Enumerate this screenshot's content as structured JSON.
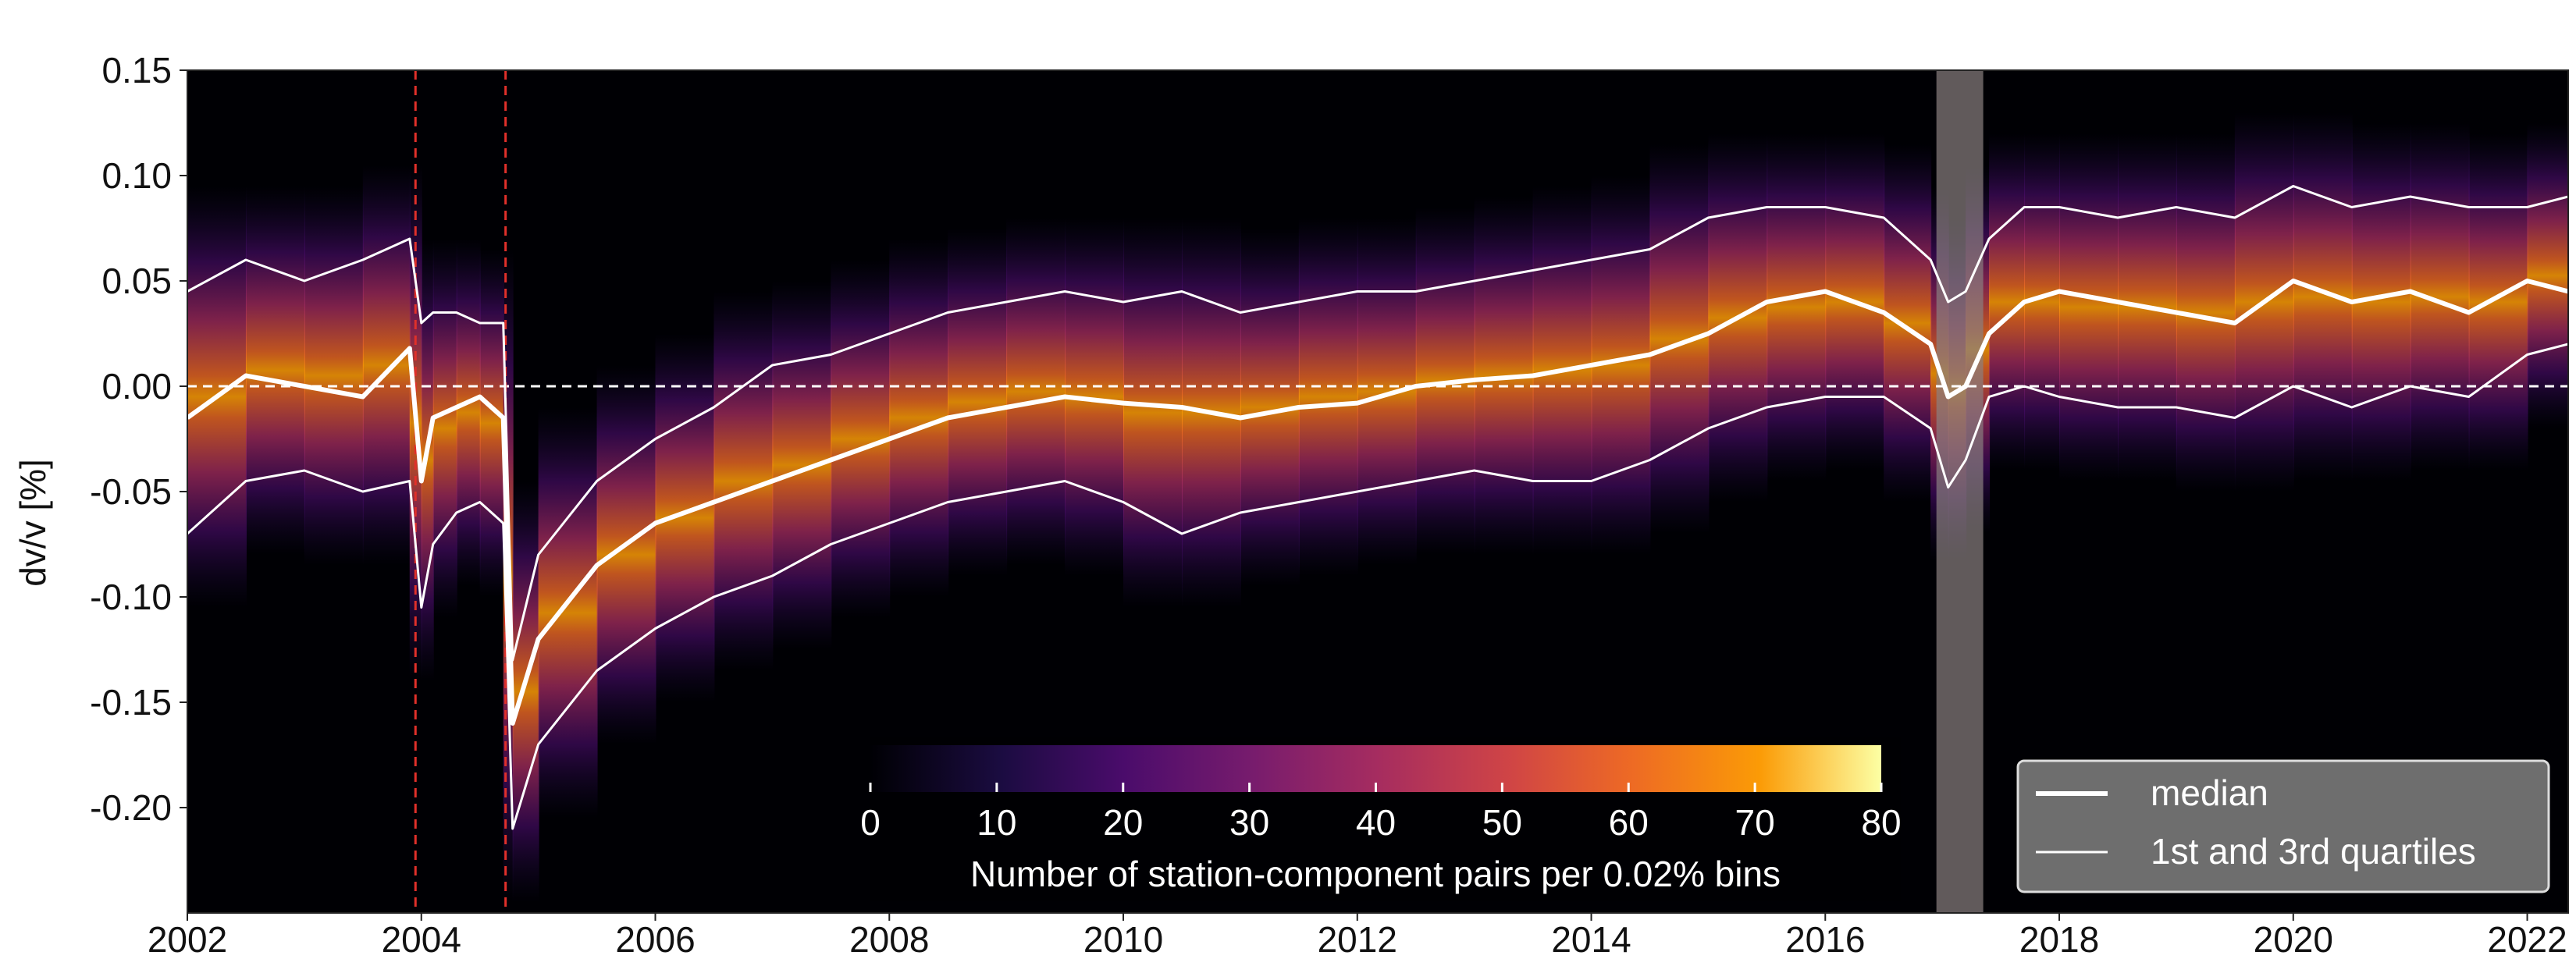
{
  "chart_data": {
    "type": "heatmap",
    "title": "",
    "xlabel": "",
    "ylabel": "dv/v [%]",
    "xlim": [
      2002.0,
      2022.35
    ],
    "ylim": [
      -0.25,
      0.15
    ],
    "x_ticks": [
      "2002",
      "2004",
      "2006",
      "2008",
      "2010",
      "2012",
      "2014",
      "2016",
      "2018",
      "2020",
      "2022"
    ],
    "x_tick_values": [
      2002,
      2004,
      2006,
      2008,
      2010,
      2012,
      2014,
      2016,
      2018,
      2020,
      2022
    ],
    "y_ticks": [
      "0.15",
      "0.10",
      "0.05",
      "0.00",
      "-0.05",
      "-0.10",
      "-0.15",
      "-0.20"
    ],
    "y_tick_values": [
      0.15,
      0.1,
      0.05,
      0.0,
      -0.05,
      -0.1,
      -0.15,
      -0.2
    ],
    "grid": false,
    "reference_line": {
      "y": 0.0,
      "style": "dashed",
      "color": "#ffffff"
    },
    "event_lines": [
      {
        "x": 2003.95,
        "color": "#e0302a",
        "style": "dashed"
      },
      {
        "x": 2004.72,
        "color": "#e0302a",
        "style": "dashed"
      }
    ],
    "shaded_interval": {
      "x0": 2016.95,
      "x1": 2017.35,
      "color": "#8a8080"
    },
    "colorbar": {
      "label": "Number of station-component pairs per 0.02% bins",
      "range": [
        0,
        80
      ],
      "ticks": [
        "0",
        "10",
        "20",
        "30",
        "40",
        "50",
        "60",
        "70",
        "80"
      ],
      "tick_values": [
        0,
        10,
        20,
        30,
        40,
        50,
        60,
        70,
        80
      ],
      "colormap": "inferno",
      "placement": "bottom-center"
    },
    "legend": {
      "placement": "bottom-right",
      "entries": [
        {
          "label": "median",
          "style": "thick white line"
        },
        {
          "label": "1st and 3rd quartiles",
          "style": "thin white line"
        }
      ]
    },
    "series": [
      {
        "name": "median",
        "x": [
          2002.0,
          2002.5,
          2003.0,
          2003.5,
          2003.9,
          2004.0,
          2004.1,
          2004.3,
          2004.5,
          2004.7,
          2004.78,
          2005.0,
          2005.5,
          2006.0,
          2006.5,
          2007.0,
          2007.5,
          2008.0,
          2008.5,
          2009.0,
          2009.5,
          2010.0,
          2010.5,
          2011.0,
          2011.5,
          2012.0,
          2012.5,
          2013.0,
          2013.5,
          2014.0,
          2014.5,
          2015.0,
          2015.5,
          2016.0,
          2016.5,
          2016.9,
          2017.05,
          2017.2,
          2017.4,
          2017.7,
          2018.0,
          2018.5,
          2019.0,
          2019.5,
          2020.0,
          2020.5,
          2021.0,
          2021.5,
          2022.0,
          2022.35
        ],
        "y": [
          -0.015,
          0.005,
          0.0,
          -0.005,
          0.018,
          -0.045,
          -0.015,
          -0.01,
          -0.005,
          -0.015,
          -0.16,
          -0.12,
          -0.085,
          -0.065,
          -0.055,
          -0.045,
          -0.035,
          -0.025,
          -0.015,
          -0.01,
          -0.005,
          -0.008,
          -0.01,
          -0.015,
          -0.01,
          -0.008,
          0.0,
          0.003,
          0.005,
          0.01,
          0.015,
          0.025,
          0.04,
          0.045,
          0.035,
          0.02,
          -0.005,
          0.0,
          0.025,
          0.04,
          0.045,
          0.04,
          0.035,
          0.03,
          0.05,
          0.04,
          0.045,
          0.035,
          0.05,
          0.045
        ]
      },
      {
        "name": "1st quartile",
        "x": [
          2002.0,
          2002.5,
          2003.0,
          2003.5,
          2003.9,
          2004.0,
          2004.1,
          2004.3,
          2004.5,
          2004.7,
          2004.78,
          2005.0,
          2005.5,
          2006.0,
          2006.5,
          2007.0,
          2007.5,
          2008.0,
          2008.5,
          2009.0,
          2009.5,
          2010.0,
          2010.5,
          2011.0,
          2011.5,
          2012.0,
          2012.5,
          2013.0,
          2013.5,
          2014.0,
          2014.5,
          2015.0,
          2015.5,
          2016.0,
          2016.5,
          2016.9,
          2017.05,
          2017.2,
          2017.4,
          2017.7,
          2018.0,
          2018.5,
          2019.0,
          2019.5,
          2020.0,
          2020.5,
          2021.0,
          2021.5,
          2022.0,
          2022.35
        ],
        "y": [
          -0.07,
          -0.045,
          -0.04,
          -0.05,
          -0.045,
          -0.105,
          -0.075,
          -0.06,
          -0.055,
          -0.065,
          -0.21,
          -0.17,
          -0.135,
          -0.115,
          -0.1,
          -0.09,
          -0.075,
          -0.065,
          -0.055,
          -0.05,
          -0.045,
          -0.055,
          -0.07,
          -0.06,
          -0.055,
          -0.05,
          -0.045,
          -0.04,
          -0.045,
          -0.045,
          -0.035,
          -0.02,
          -0.01,
          -0.005,
          -0.005,
          -0.02,
          -0.048,
          -0.035,
          -0.005,
          0.0,
          -0.005,
          -0.01,
          -0.01,
          -0.015,
          0.0,
          -0.01,
          0.0,
          -0.005,
          0.015,
          0.02
        ]
      },
      {
        "name": "3rd quartile",
        "x": [
          2002.0,
          2002.5,
          2003.0,
          2003.5,
          2003.9,
          2004.0,
          2004.1,
          2004.3,
          2004.5,
          2004.7,
          2004.78,
          2005.0,
          2005.5,
          2006.0,
          2006.5,
          2007.0,
          2007.5,
          2008.0,
          2008.5,
          2009.0,
          2009.5,
          2010.0,
          2010.5,
          2011.0,
          2011.5,
          2012.0,
          2012.5,
          2013.0,
          2013.5,
          2014.0,
          2014.5,
          2015.0,
          2015.5,
          2016.0,
          2016.5,
          2016.9,
          2017.05,
          2017.2,
          2017.4,
          2017.7,
          2018.0,
          2018.5,
          2019.0,
          2019.5,
          2020.0,
          2020.5,
          2021.0,
          2021.5,
          2022.0,
          2022.35
        ],
        "y": [
          0.045,
          0.06,
          0.05,
          0.06,
          0.07,
          0.03,
          0.035,
          0.035,
          0.03,
          0.03,
          -0.13,
          -0.08,
          -0.045,
          -0.025,
          -0.01,
          0.01,
          0.015,
          0.025,
          0.035,
          0.04,
          0.045,
          0.04,
          0.045,
          0.035,
          0.04,
          0.045,
          0.045,
          0.05,
          0.055,
          0.06,
          0.065,
          0.08,
          0.085,
          0.085,
          0.08,
          0.06,
          0.04,
          0.045,
          0.07,
          0.085,
          0.085,
          0.08,
          0.085,
          0.08,
          0.095,
          0.085,
          0.09,
          0.085,
          0.085,
          0.09
        ]
      }
    ]
  }
}
